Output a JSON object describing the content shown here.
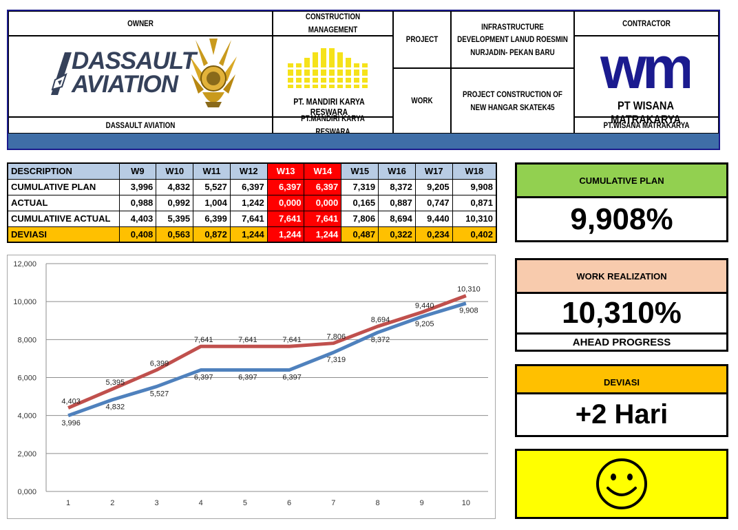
{
  "header": {
    "owner_label": "OWNER",
    "owner_name": "DASSAULT AVIATION",
    "owner_logo_text": [
      "DASSAULT",
      "AVIATION"
    ],
    "cm_label": "CONSTRUCTION MANAGEMENT",
    "cm_logo_text": "PT. MANDIRI KARYA RESWARA",
    "cm_name": "PT.MANDIRI KARYA RESWARA",
    "project_label": "PROJECT",
    "project_value": "INFRASTRUCTURE DEVELOPMENT LANUD ROESMIN NURJADIN- PEKAN BARU",
    "work_label": "WORK",
    "work_value": "PROJECT CONSTRUCTION OF NEW HANGAR SKATEK45",
    "contractor_label": "CONTRACTOR",
    "contractor_logo_text": "wmk",
    "contractor_logo_name": "PT WISANA MATRAKARYA",
    "contractor_name": "PT.WISANA MATRAKARYA"
  },
  "table": {
    "columns": [
      "DESCRIPTION",
      "W9",
      "W10",
      "W11",
      "W12",
      "W13",
      "W14",
      "W15",
      "W16",
      "W17",
      "W18"
    ],
    "highlight_columns": [
      5,
      6
    ],
    "rows": [
      {
        "label": "CUMULATIVE PLAN",
        "values": [
          "3,996",
          "4,832",
          "5,527",
          "6,397",
          "6,397",
          "6,397",
          "7,319",
          "8,372",
          "9,205",
          "9,908"
        ]
      },
      {
        "label": "ACTUAL",
        "values": [
          "0,988",
          "0,992",
          "1,004",
          "1,242",
          "0,000",
          "0,000",
          "0,165",
          "0,887",
          "0,747",
          "0,871"
        ]
      },
      {
        "label": "CUMULATIIVE ACTUAL",
        "values": [
          "4,403",
          "5,395",
          "6,399",
          "7,641",
          "7,641",
          "7,641",
          "7,806",
          "8,694",
          "9,440",
          "10,310"
        ]
      },
      {
        "label": "DEVIASI",
        "values": [
          "0,408",
          "0,563",
          "0,872",
          "1,244",
          "1,244",
          "1,244",
          "0,487",
          "0,322",
          "0,234",
          "0,402"
        ]
      }
    ]
  },
  "chart_data": {
    "type": "line",
    "x": [
      1,
      2,
      3,
      4,
      5,
      6,
      7,
      8,
      9,
      10
    ],
    "ylim": [
      0,
      12
    ],
    "yticks": [
      "0,000",
      "2,000",
      "4,000",
      "6,000",
      "8,000",
      "10,000",
      "12,000"
    ],
    "grid": true,
    "series": [
      {
        "values": [
          3.996,
          4.832,
          5.527,
          6.397,
          6.397,
          6.397,
          7.319,
          8.372,
          9.205,
          9.908
        ],
        "labels": [
          "3,996",
          "4,832",
          "5,527",
          "6,397",
          "6,397",
          "6,397",
          "7,319",
          "8,372",
          "9,205",
          "9,908"
        ],
        "color": "#4f81bd"
      },
      {
        "values": [
          4.403,
          5.395,
          6.399,
          7.641,
          7.641,
          7.641,
          7.806,
          8.694,
          9.44,
          10.31
        ],
        "labels": [
          "4,403",
          "5,395",
          "6,399",
          "7,641",
          "7,641",
          "7,641",
          "7,806",
          "8,694",
          "9,440",
          "10,310"
        ],
        "color": "#c0504d"
      }
    ]
  },
  "panels": {
    "plan_label": "CUMULATIVE PLAN",
    "plan_value": "9,908%",
    "realization_label": "WORK REALIZATION",
    "realization_value": "10,310%",
    "realization_status": "AHEAD PROGRESS",
    "deviasi_label": "DEVIASI",
    "deviasi_value": "+2 Hari",
    "status_icon": "smiley-icon"
  },
  "colors": {
    "header_band": "#3f6ea7",
    "table_header": "#b8cce4",
    "highlight_red": "#ff0000",
    "deviasi_row": "#ffc000",
    "plan_panel": "#92d050",
    "realization_panel": "#f8cbad",
    "deviasi_panel": "#ffc000",
    "status_panel": "#ffff00"
  }
}
